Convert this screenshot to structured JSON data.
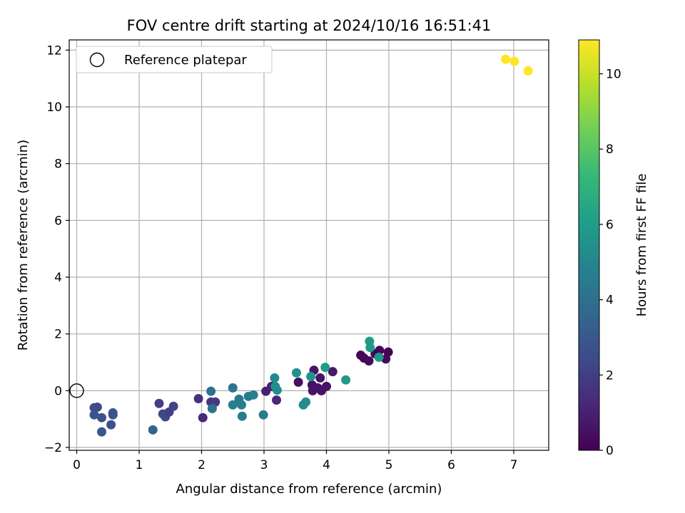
{
  "chart_data": {
    "type": "scatter",
    "title": "FOV centre drift starting at 2024/10/16 16:51:41",
    "xlabel": "Angular distance from reference (arcmin)",
    "ylabel": "Rotation from reference (arcmin)",
    "xlim": [
      -0.12,
      7.56
    ],
    "ylim": [
      -2.1,
      12.36
    ],
    "xticks": [
      0,
      1,
      2,
      3,
      4,
      5,
      6,
      7
    ],
    "yticks": [
      -2,
      0,
      2,
      4,
      6,
      8,
      10,
      12
    ],
    "grid": true,
    "legend": {
      "position": "top-left",
      "entries": [
        "Reference platepar"
      ]
    },
    "reference_point": {
      "x": 0,
      "y": 0
    },
    "colorbar": {
      "label": "Hours from first FF file",
      "range": [
        0,
        10.9
      ],
      "ticks": [
        0,
        2,
        4,
        6,
        8,
        10
      ],
      "colormap": [
        "#440154",
        "#482878",
        "#3e4a89",
        "#31688e",
        "#26828e",
        "#1f9e89",
        "#35b779",
        "#6ece58",
        "#b5de2b",
        "#fde725"
      ]
    },
    "points": [
      {
        "x": 4.55,
        "y": 1.25,
        "c": 0.2
      },
      {
        "x": 4.6,
        "y": 1.15,
        "c": 0.2
      },
      {
        "x": 4.68,
        "y": 1.05,
        "c": 0.3
      },
      {
        "x": 4.78,
        "y": 1.3,
        "c": 0.2
      },
      {
        "x": 4.85,
        "y": 1.42,
        "c": 0.1
      },
      {
        "x": 4.95,
        "y": 1.12,
        "c": 0.2
      },
      {
        "x": 4.99,
        "y": 1.36,
        "c": 0.1
      },
      {
        "x": 3.55,
        "y": 0.3,
        "c": 0.5
      },
      {
        "x": 3.77,
        "y": 0.2,
        "c": 0.5
      },
      {
        "x": 3.8,
        "y": 0.72,
        "c": 0.6
      },
      {
        "x": 3.78,
        "y": 0.0,
        "c": 0.6
      },
      {
        "x": 3.86,
        "y": 0.1,
        "c": 0.6
      },
      {
        "x": 3.9,
        "y": 0.45,
        "c": 0.6
      },
      {
        "x": 3.92,
        "y": 0.0,
        "c": 0.6
      },
      {
        "x": 4.0,
        "y": 0.15,
        "c": 0.6
      },
      {
        "x": 4.1,
        "y": 0.67,
        "c": 0.7
      },
      {
        "x": 3.03,
        "y": -0.02,
        "c": 1.0
      },
      {
        "x": 3.12,
        "y": 0.15,
        "c": 1.0
      },
      {
        "x": 3.2,
        "y": -0.33,
        "c": 1.2
      },
      {
        "x": 1.95,
        "y": -0.28,
        "c": 1.6
      },
      {
        "x": 2.02,
        "y": -0.95,
        "c": 1.3
      },
      {
        "x": 2.15,
        "y": -0.4,
        "c": 1.7
      },
      {
        "x": 2.22,
        "y": -0.4,
        "c": 1.8
      },
      {
        "x": 1.32,
        "y": -0.45,
        "c": 2.0
      },
      {
        "x": 1.38,
        "y": -0.82,
        "c": 2.3
      },
      {
        "x": 1.42,
        "y": -0.92,
        "c": 2.4
      },
      {
        "x": 1.48,
        "y": -0.75,
        "c": 2.1
      },
      {
        "x": 1.55,
        "y": -0.55,
        "c": 2.2
      },
      {
        "x": 0.28,
        "y": -0.6,
        "c": 2.6
      },
      {
        "x": 0.33,
        "y": -0.58,
        "c": 2.5
      },
      {
        "x": 0.28,
        "y": -0.85,
        "c": 2.8
      },
      {
        "x": 0.4,
        "y": -0.95,
        "c": 2.7
      },
      {
        "x": 0.4,
        "y": -1.45,
        "c": 2.9
      },
      {
        "x": 0.55,
        "y": -1.2,
        "c": 2.8
      },
      {
        "x": 0.58,
        "y": -0.78,
        "c": 2.9
      },
      {
        "x": 0.58,
        "y": -0.85,
        "c": 2.8
      },
      {
        "x": 1.22,
        "y": -1.38,
        "c": 3.5
      },
      {
        "x": 2.15,
        "y": -0.02,
        "c": 4.0
      },
      {
        "x": 2.17,
        "y": -0.63,
        "c": 4.1
      },
      {
        "x": 2.5,
        "y": 0.1,
        "c": 4.3
      },
      {
        "x": 2.5,
        "y": -0.5,
        "c": 4.6
      },
      {
        "x": 2.6,
        "y": -0.3,
        "c": 4.4
      },
      {
        "x": 2.64,
        "y": -0.5,
        "c": 4.6
      },
      {
        "x": 2.65,
        "y": -0.9,
        "c": 4.5
      },
      {
        "x": 2.75,
        "y": -0.2,
        "c": 4.5
      },
      {
        "x": 2.83,
        "y": -0.15,
        "c": 4.8
      },
      {
        "x": 2.99,
        "y": -0.85,
        "c": 4.5
      },
      {
        "x": 3.17,
        "y": 0.45,
        "c": 5.2
      },
      {
        "x": 3.18,
        "y": 0.15,
        "c": 5.3
      },
      {
        "x": 3.21,
        "y": 0.02,
        "c": 5.4
      },
      {
        "x": 3.52,
        "y": 0.63,
        "c": 5.6
      },
      {
        "x": 3.63,
        "y": -0.5,
        "c": 5.2
      },
      {
        "x": 3.67,
        "y": -0.4,
        "c": 5.3
      },
      {
        "x": 3.75,
        "y": 0.5,
        "c": 5.6
      },
      {
        "x": 3.98,
        "y": 0.82,
        "c": 5.9
      },
      {
        "x": 4.31,
        "y": 0.38,
        "c": 5.8
      },
      {
        "x": 4.69,
        "y": 1.74,
        "c": 5.9
      },
      {
        "x": 4.7,
        "y": 1.52,
        "c": 5.8
      },
      {
        "x": 4.84,
        "y": 1.18,
        "c": 5.8
      },
      {
        "x": 6.87,
        "y": 11.68,
        "c": 10.9
      },
      {
        "x": 7.01,
        "y": 11.6,
        "c": 10.9
      },
      {
        "x": 7.23,
        "y": 11.27,
        "c": 10.9
      }
    ]
  }
}
